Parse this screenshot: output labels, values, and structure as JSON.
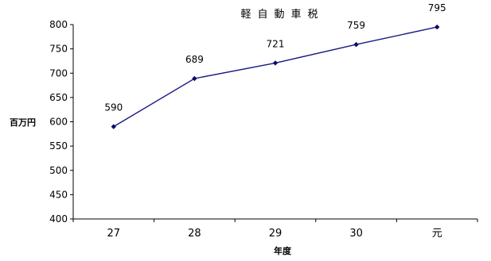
{
  "chart_data": {
    "type": "line",
    "title": "軽自動車税",
    "xlabel": "年度",
    "ylabel": "百万円",
    "categories": [
      "27",
      "28",
      "29",
      "30",
      "元"
    ],
    "series": [
      {
        "values": [
          590,
          689,
          721,
          759,
          795
        ]
      }
    ],
    "data_labels": [
      "590",
      "689",
      "721",
      "759",
      "795"
    ],
    "ylim": [
      400,
      800
    ],
    "yticks": [
      "400",
      "450",
      "500",
      "550",
      "600",
      "650",
      "700",
      "750",
      "800"
    ],
    "grid": false,
    "legend": "none",
    "line_color": "#1a1a80",
    "marker_color": "#0d0d66"
  }
}
